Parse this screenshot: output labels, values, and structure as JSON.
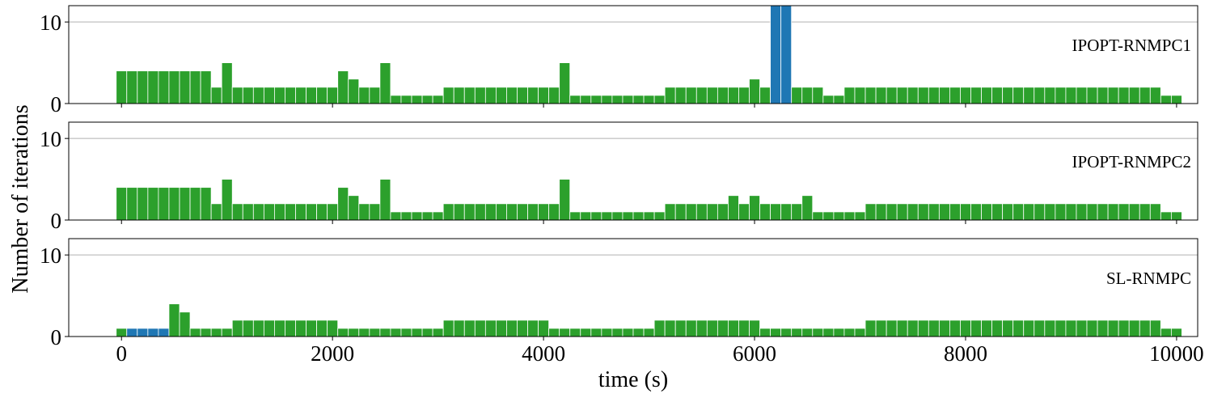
{
  "chart_data": {
    "type": "bar",
    "bin_width_s": 100,
    "x_start": 0,
    "xlabel": "time (s)",
    "ylabel": "Number of iterations",
    "xlim": [
      -500,
      10200
    ],
    "ylim": [
      0,
      12
    ],
    "x_ticks": [
      "0",
      "2000",
      "4000",
      "6000",
      "8000",
      "10000"
    ],
    "y_ticks": [
      "0",
      "10"
    ],
    "grid": "horizontal at 10",
    "colors": {
      "normal": "#2ca02c",
      "highlight": "#1f77b4"
    },
    "panels": [
      {
        "name": "IPOPT-RNMPC1",
        "values": [
          4,
          4,
          4,
          4,
          4,
          4,
          4,
          4,
          4,
          2,
          5,
          2,
          2,
          2,
          2,
          2,
          2,
          2,
          2,
          2,
          2,
          4,
          3,
          2,
          2,
          5,
          1,
          1,
          1,
          1,
          1,
          2,
          2,
          2,
          2,
          2,
          2,
          2,
          2,
          2,
          2,
          2,
          5,
          1,
          1,
          1,
          1,
          1,
          1,
          1,
          1,
          1,
          2,
          2,
          2,
          2,
          2,
          2,
          2,
          2,
          3,
          2,
          12,
          12,
          2,
          2,
          2,
          1,
          1,
          2,
          2,
          2,
          2,
          2,
          2,
          2,
          2,
          2,
          2,
          2,
          2,
          2,
          2,
          2,
          2,
          2,
          2,
          2,
          2,
          2,
          2,
          2,
          2,
          2,
          2,
          2,
          2,
          2,
          2,
          1,
          1
        ],
        "highlight_bins": [
          62,
          63
        ]
      },
      {
        "name": "IPOPT-RNMPC2",
        "values": [
          4,
          4,
          4,
          4,
          4,
          4,
          4,
          4,
          4,
          2,
          5,
          2,
          2,
          2,
          2,
          2,
          2,
          2,
          2,
          2,
          2,
          4,
          3,
          2,
          2,
          5,
          1,
          1,
          1,
          1,
          1,
          2,
          2,
          2,
          2,
          2,
          2,
          2,
          2,
          2,
          2,
          2,
          5,
          1,
          1,
          1,
          1,
          1,
          1,
          1,
          1,
          1,
          2,
          2,
          2,
          2,
          2,
          2,
          3,
          2,
          3,
          2,
          2,
          2,
          2,
          3,
          1,
          1,
          1,
          1,
          1,
          2,
          2,
          2,
          2,
          2,
          2,
          2,
          2,
          2,
          2,
          2,
          2,
          2,
          2,
          2,
          2,
          2,
          2,
          2,
          2,
          2,
          2,
          2,
          2,
          2,
          2,
          2,
          2,
          1,
          1
        ],
        "highlight_bins": []
      },
      {
        "name": "SL-RNMPC",
        "values": [
          1,
          1,
          1,
          1,
          1,
          4,
          3,
          1,
          1,
          1,
          1,
          2,
          2,
          2,
          2,
          2,
          2,
          2,
          2,
          2,
          2,
          1,
          1,
          1,
          1,
          1,
          1,
          1,
          1,
          1,
          1,
          2,
          2,
          2,
          2,
          2,
          2,
          2,
          2,
          2,
          2,
          1,
          1,
          1,
          1,
          1,
          1,
          1,
          1,
          1,
          1,
          2,
          2,
          2,
          2,
          2,
          2,
          2,
          2,
          2,
          2,
          1,
          1,
          1,
          1,
          1,
          1,
          1,
          1,
          1,
          1,
          2,
          2,
          2,
          2,
          2,
          2,
          2,
          2,
          2,
          2,
          2,
          2,
          2,
          2,
          2,
          2,
          2,
          2,
          2,
          2,
          2,
          2,
          2,
          2,
          2,
          2,
          2,
          2,
          1,
          1
        ],
        "highlight_bins": [
          1,
          2,
          3,
          4
        ]
      }
    ]
  }
}
